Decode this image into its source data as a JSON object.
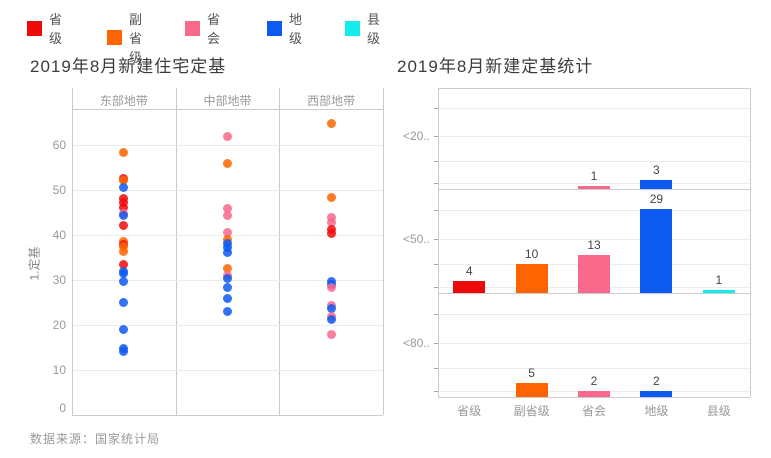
{
  "legend": {
    "items": [
      {
        "key": "省级",
        "label": "省级",
        "color": "#ee0a0a"
      },
      {
        "key": "副省级",
        "label": "副省级",
        "color": "#fe6400"
      },
      {
        "key": "省会",
        "label": "省会",
        "color": "#f9698c"
      },
      {
        "key": "地级",
        "label": "地级",
        "color": "#0d5af0"
      },
      {
        "key": "县级",
        "label": "县级",
        "color": "#14ebeb"
      }
    ]
  },
  "source_note": "数据来源：国家统计局",
  "chart_data": [
    {
      "type": "scatter",
      "title": "2019年8月新建住宅定基",
      "ylabel": "1.定基",
      "yticks": [
        0,
        10,
        20,
        30,
        40,
        50,
        60
      ],
      "ylim": [
        0,
        72
      ],
      "facets": [
        "东部地带",
        "中部地带",
        "西部地带"
      ],
      "series": [
        {
          "facet": "东部地带",
          "points": [
            {
              "group": "副省级",
              "value": 58.3
            },
            {
              "group": "省级",
              "value": 52.6
            },
            {
              "group": "副省级",
              "value": 52.1
            },
            {
              "group": "地级",
              "value": 50.5
            },
            {
              "group": "省级",
              "value": 48.2
            },
            {
              "group": "省级",
              "value": 47.2
            },
            {
              "group": "省级",
              "value": 46.2
            },
            {
              "group": "省会",
              "value": 44.7
            },
            {
              "group": "地级",
              "value": 44.3
            },
            {
              "group": "省级",
              "value": 42.1
            },
            {
              "group": "副省级",
              "value": 38.6
            },
            {
              "group": "省级",
              "value": 38.0
            },
            {
              "group": "副省级",
              "value": 37.4
            },
            {
              "group": "副省级",
              "value": 36.3
            },
            {
              "group": "省级",
              "value": 33.5
            },
            {
              "group": "地级",
              "value": 32.0
            },
            {
              "group": "地级",
              "value": 31.4
            },
            {
              "group": "地级",
              "value": 29.7
            },
            {
              "group": "地级",
              "value": 24.9
            },
            {
              "group": "地级",
              "value": 19.0
            },
            {
              "group": "地级",
              "value": 14.8
            },
            {
              "group": "地级",
              "value": 14.2
            }
          ]
        },
        {
          "facet": "中部地带",
          "points": [
            {
              "group": "省会",
              "value": 62.0
            },
            {
              "group": "副省级",
              "value": 56.0
            },
            {
              "group": "省会",
              "value": 46.0
            },
            {
              "group": "省会",
              "value": 44.3
            },
            {
              "group": "省会",
              "value": 40.5
            },
            {
              "group": "副省级",
              "value": 39.0
            },
            {
              "group": "地级",
              "value": 38.2
            },
            {
              "group": "地级",
              "value": 37.3
            },
            {
              "group": "地级",
              "value": 36.2
            },
            {
              "group": "副省级",
              "value": 32.6
            },
            {
              "group": "省会",
              "value": 31.0
            },
            {
              "group": "地级",
              "value": 30.3
            },
            {
              "group": "地级",
              "value": 28.3
            },
            {
              "group": "地级",
              "value": 26.0
            },
            {
              "group": "地级",
              "value": 23.0
            }
          ]
        },
        {
          "facet": "西部地带",
          "points": [
            {
              "group": "副省级",
              "value": 64.8
            },
            {
              "group": "副省级",
              "value": 48.4
            },
            {
              "group": "省会",
              "value": 43.8
            },
            {
              "group": "省会",
              "value": 42.7
            },
            {
              "group": "省级",
              "value": 41.2
            },
            {
              "group": "省级",
              "value": 40.4
            },
            {
              "group": "地级",
              "value": 29.6
            },
            {
              "group": "地级",
              "value": 29.0
            },
            {
              "group": "省会",
              "value": 28.4
            },
            {
              "group": "省会",
              "value": 24.4
            },
            {
              "group": "地级",
              "value": 23.6
            },
            {
              "group": "省会",
              "value": 21.9
            },
            {
              "group": "地级",
              "value": 21.3
            },
            {
              "group": "省会",
              "value": 18.0
            }
          ]
        }
      ]
    },
    {
      "type": "bar",
      "title": "2019年8月新建定基统计",
      "categories": [
        "省级",
        "副省级",
        "省会",
        "地级",
        "县级"
      ],
      "row_facets": [
        {
          "label": "<20..",
          "values": [
            null,
            null,
            1,
            3,
            null
          ]
        },
        {
          "label": "<50..",
          "values": [
            4,
            10,
            13,
            29,
            1
          ]
        },
        {
          "label": "<80..",
          "values": [
            null,
            5,
            2,
            2,
            null
          ]
        }
      ]
    }
  ]
}
